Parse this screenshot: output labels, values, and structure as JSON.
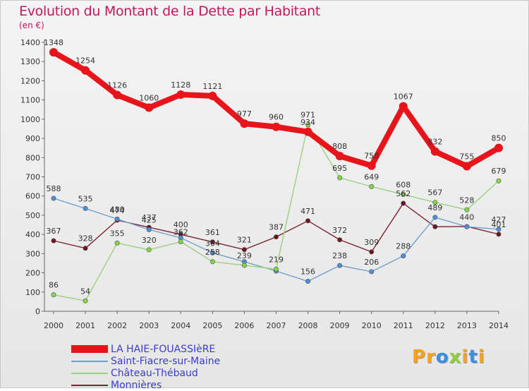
{
  "chart_data": {
    "type": "line",
    "title": "Evolution du Montant de la Dette par Habitant",
    "subtitle": "(en €)",
    "x": [
      "2000",
      "2001",
      "2002",
      "2003",
      "2004",
      "2005",
      "2006",
      "2007",
      "2008",
      "2009",
      "2010",
      "2011",
      "2012",
      "2013",
      "2014"
    ],
    "yticks": [
      0,
      100,
      200,
      300,
      400,
      500,
      600,
      700,
      800,
      900,
      1000,
      1100,
      1200,
      1300,
      1400
    ],
    "ylim": [
      0,
      1400
    ],
    "grid": false,
    "legend_position": "bottom-left",
    "series": [
      {
        "name": "LA HAIE-FOUASSIèRE",
        "color": "#e8141b",
        "width": 8,
        "marker": 6,
        "values": [
          1348,
          1254,
          1126,
          1060,
          1128,
          1121,
          977,
          960,
          934,
          808,
          758,
          1067,
          832,
          755,
          850
        ],
        "labels": [
          "1348",
          "1254",
          "1126",
          "1060",
          "1128",
          "1121",
          "977",
          "960",
          "934",
          "808",
          "758",
          "1067",
          "832",
          "755",
          "850"
        ]
      },
      {
        "name": "Saint-Fiacre-sur-Maine",
        "color": "#6fa1cf",
        "width": 1.4,
        "marker": 3.2,
        "markerFill": "#4f8fd8",
        "values": [
          588,
          535,
          480,
          425,
          382,
          304,
          258,
          209,
          156,
          238,
          206,
          288,
          489,
          440,
          427
        ],
        "labels": [
          "588",
          "535",
          "480",
          "425",
          "",
          "304",
          "",
          "",
          "156",
          "238",
          "206",
          "288",
          "489",
          "440",
          "427"
        ]
      },
      {
        "name": "Château-Thébaud",
        "color": "#9ad27c",
        "width": 1.4,
        "marker": 3.2,
        "markerFill": "#7fd64a",
        "values": [
          86,
          54,
          355,
          320,
          362,
          258,
          239,
          219,
          971,
          695,
          649,
          608,
          567,
          528,
          679
        ],
        "labels": [
          "86",
          "54",
          "355",
          "320",
          "362",
          "258",
          "239",
          "219",
          "971",
          "695",
          "649",
          "608",
          "567",
          "528",
          "679"
        ]
      },
      {
        "name": "Monnières",
        "color": "#7b2431",
        "width": 1.4,
        "marker": 3.2,
        "markerFill": "#6d1423",
        "values": [
          367,
          328,
          474,
          437,
          400,
          361,
          321,
          387,
          471,
          372,
          309,
          562,
          440,
          441,
          401
        ],
        "labels": [
          "367",
          "328",
          "474",
          "437",
          "400",
          "361",
          "321",
          "387",
          "471",
          "372",
          "309",
          "562",
          "",
          "",
          "401"
        ]
      }
    ]
  },
  "logo": {
    "letters": [
      {
        "ch": "P",
        "color": "#f6a21e"
      },
      {
        "ch": "r",
        "color": "#f6a21e"
      },
      {
        "ch": "o",
        "color": "#3b8ee0"
      },
      {
        "ch": "x",
        "color": "#8fcf3c"
      },
      {
        "ch": "i",
        "color": "#f6a21e"
      },
      {
        "ch": "t",
        "color": "#3b8ee0"
      },
      {
        "ch": "i",
        "color": "#f6a21e"
      }
    ]
  }
}
